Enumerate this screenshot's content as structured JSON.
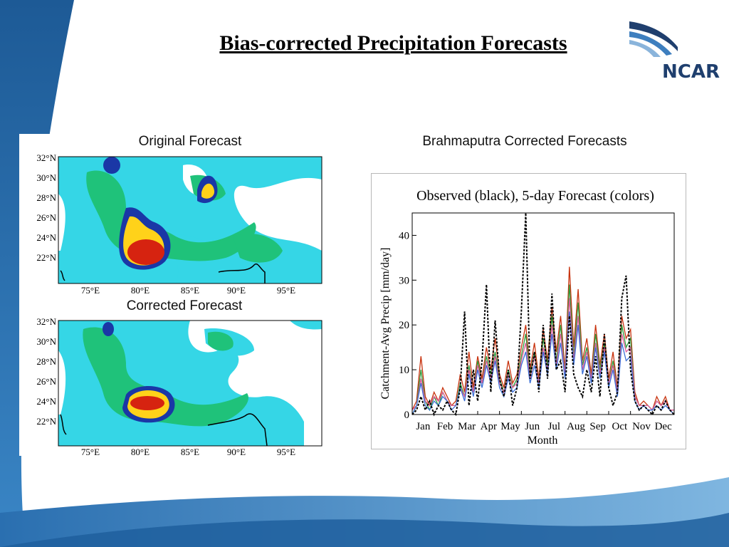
{
  "slide": {
    "title": "Bias-corrected Precipitation Forecasts",
    "logo_text": "NCAR",
    "colors": {
      "bg_dark": "#1d5a96",
      "bg_light": "#4c93cf",
      "logo": "#1f3f6e"
    }
  },
  "maps": {
    "original_label": "Original Forecast",
    "corrected_label": "Corrected Forecast",
    "lat_labels": [
      "32°N",
      "30°N",
      "28°N",
      "26°N",
      "24°N",
      "22°N"
    ],
    "lon_labels": [
      "75°E",
      "80°E",
      "85°E",
      "90°E",
      "95°E"
    ],
    "colors": {
      "low": "#35d6e6",
      "mid": "#1fc27a",
      "high": "#1a37a6",
      "peak": "#ffd21a",
      "max": "#d62310"
    }
  },
  "chart_data": {
    "type": "line",
    "caption": "Brahmaputra Corrected Forecasts",
    "title": "Observed (black), 5-day Forecast (colors)",
    "xlabel": "Month",
    "ylabel": "Catchment-Avg Precip [mm/day]",
    "ylim": [
      0,
      45
    ],
    "yticks": [
      0,
      10,
      20,
      30,
      40
    ],
    "categories": [
      "Jan",
      "Feb",
      "Mar",
      "Apr",
      "May",
      "Jun",
      "Jul",
      "Aug",
      "Sep",
      "Oct",
      "Nov",
      "Dec"
    ],
    "grid": false,
    "series": [
      {
        "name": "Observed",
        "color": "#000000",
        "x": [
          0,
          0.2,
          0.4,
          0.6,
          0.8,
          1.0,
          1.2,
          1.4,
          1.6,
          1.8,
          2.0,
          2.2,
          2.4,
          2.6,
          2.8,
          3.0,
          3.2,
          3.4,
          3.6,
          3.8,
          4.0,
          4.2,
          4.4,
          4.6,
          4.8,
          5.0,
          5.2,
          5.4,
          5.6,
          5.8,
          6.0,
          6.2,
          6.4,
          6.6,
          6.8,
          7.0,
          7.2,
          7.4,
          7.6,
          7.8,
          8.0,
          8.2,
          8.4,
          8.6,
          8.8,
          9.0,
          9.2,
          9.4,
          9.6,
          9.8,
          10.0,
          10.2,
          10.4,
          10.6,
          10.8,
          11.0,
          11.2,
          11.4,
          11.6,
          11.8,
          12.0
        ],
        "values": [
          0,
          1,
          4,
          1,
          3,
          0,
          2,
          1,
          3,
          1,
          0,
          6,
          23,
          2,
          10,
          3,
          12,
          29,
          5,
          21,
          8,
          4,
          10,
          2,
          6,
          23,
          46,
          8,
          14,
          5,
          20,
          8,
          27,
          10,
          12,
          5,
          22,
          9,
          6,
          4,
          10,
          5,
          13,
          4,
          18,
          6,
          2,
          5,
          26,
          31,
          10,
          3,
          1,
          2,
          1,
          0,
          2,
          1,
          3,
          1,
          0
        ]
      },
      {
        "name": "Forecast",
        "color": "#c8330f",
        "x": [
          0,
          0.2,
          0.4,
          0.6,
          0.8,
          1.0,
          1.2,
          1.4,
          1.6,
          1.8,
          2.0,
          2.2,
          2.4,
          2.6,
          2.8,
          3.0,
          3.2,
          3.4,
          3.6,
          3.8,
          4.0,
          4.2,
          4.4,
          4.6,
          4.8,
          5.0,
          5.2,
          5.4,
          5.6,
          5.8,
          6.0,
          6.2,
          6.4,
          6.6,
          6.8,
          7.0,
          7.2,
          7.4,
          7.6,
          7.8,
          8.0,
          8.2,
          8.4,
          8.6,
          8.8,
          9.0,
          9.2,
          9.4,
          9.6,
          9.8,
          10.0,
          10.2,
          10.4,
          10.6,
          10.8,
          11.0,
          11.2,
          11.4,
          11.6,
          11.8,
          12.0
        ],
        "values": [
          1,
          3,
          13,
          4,
          2,
          5,
          3,
          6,
          4,
          2,
          3,
          9,
          5,
          14,
          6,
          13,
          8,
          15,
          10,
          17,
          9,
          6,
          12,
          7,
          9,
          15,
          20,
          10,
          16,
          8,
          19,
          12,
          24,
          14,
          22,
          10,
          33,
          15,
          28,
          12,
          17,
          9,
          20,
          11,
          18,
          8,
          14,
          6,
          22,
          17,
          19,
          5,
          2,
          3,
          2,
          1,
          4,
          2,
          4,
          1,
          1
        ]
      },
      {
        "name": "Forecast",
        "color": "#2e9c3a",
        "x": [
          0,
          0.2,
          0.4,
          0.6,
          0.8,
          1.0,
          1.2,
          1.4,
          1.6,
          1.8,
          2.0,
          2.2,
          2.4,
          2.6,
          2.8,
          3.0,
          3.2,
          3.4,
          3.6,
          3.8,
          4.0,
          4.2,
          4.4,
          4.6,
          4.8,
          5.0,
          5.2,
          5.4,
          5.6,
          5.8,
          6.0,
          6.2,
          6.4,
          6.6,
          6.8,
          7.0,
          7.2,
          7.4,
          7.6,
          7.8,
          8.0,
          8.2,
          8.4,
          8.6,
          8.8,
          9.0,
          9.2,
          9.4,
          9.6,
          9.8,
          10.0,
          10.2,
          10.4,
          10.6,
          10.8,
          11.0,
          11.2,
          11.4,
          11.6,
          11.8,
          12.0
        ],
        "values": [
          0,
          2,
          10,
          3,
          1,
          4,
          2,
          5,
          3,
          2,
          2,
          7,
          4,
          11,
          5,
          12,
          7,
          13,
          9,
          14,
          8,
          5,
          10,
          6,
          8,
          13,
          18,
          9,
          14,
          7,
          17,
          11,
          22,
          12,
          20,
          9,
          29,
          13,
          25,
          11,
          15,
          8,
          18,
          10,
          16,
          7,
          12,
          5,
          20,
          15,
          17,
          4,
          2,
          2,
          2,
          1,
          3,
          2,
          3,
          1,
          1
        ]
      },
      {
        "name": "Forecast",
        "color": "#e05a9a",
        "x": [
          0,
          0.2,
          0.4,
          0.6,
          0.8,
          1.0,
          1.2,
          1.4,
          1.6,
          1.8,
          2.0,
          2.2,
          2.4,
          2.6,
          2.8,
          3.0,
          3.2,
          3.4,
          3.6,
          3.8,
          4.0,
          4.2,
          4.4,
          4.6,
          4.8,
          5.0,
          5.2,
          5.4,
          5.6,
          5.8,
          6.0,
          6.2,
          6.4,
          6.6,
          6.8,
          7.0,
          7.2,
          7.4,
          7.6,
          7.8,
          8.0,
          8.2,
          8.4,
          8.6,
          8.8,
          9.0,
          9.2,
          9.4,
          9.6,
          9.8,
          10.0,
          10.2,
          10.4,
          10.6,
          10.8,
          11.0,
          11.2,
          11.4,
          11.6,
          11.8,
          12.0
        ],
        "values": [
          1,
          2,
          8,
          3,
          2,
          4,
          3,
          5,
          3,
          2,
          2,
          6,
          4,
          10,
          5,
          11,
          7,
          12,
          8,
          13,
          7,
          5,
          9,
          6,
          7,
          12,
          16,
          8,
          13,
          7,
          15,
          10,
          20,
          11,
          18,
          9,
          26,
          12,
          22,
          10,
          14,
          8,
          16,
          9,
          15,
          7,
          11,
          5,
          18,
          14,
          15,
          4,
          2,
          2,
          2,
          1,
          3,
          2,
          3,
          1,
          1
        ]
      },
      {
        "name": "Forecast",
        "color": "#3a6fd6",
        "x": [
          0,
          0.2,
          0.4,
          0.6,
          0.8,
          1.0,
          1.2,
          1.4,
          1.6,
          1.8,
          2.0,
          2.2,
          2.4,
          2.6,
          2.8,
          3.0,
          3.2,
          3.4,
          3.6,
          3.8,
          4.0,
          4.2,
          4.4,
          4.6,
          4.8,
          5.0,
          5.2,
          5.4,
          5.6,
          5.8,
          6.0,
          6.2,
          6.4,
          6.6,
          6.8,
          7.0,
          7.2,
          7.4,
          7.6,
          7.8,
          8.0,
          8.2,
          8.4,
          8.6,
          8.8,
          9.0,
          9.2,
          9.4,
          9.6,
          9.8,
          10.0,
          10.2,
          10.4,
          10.6,
          10.8,
          11.0,
          11.2,
          11.4,
          11.6,
          11.8,
          12.0
        ],
        "values": [
          0,
          2,
          7,
          2,
          1,
          3,
          2,
          4,
          3,
          1,
          2,
          6,
          3,
          9,
          4,
          10,
          6,
          11,
          7,
          12,
          6,
          4,
          8,
          5,
          6,
          11,
          14,
          7,
          11,
          6,
          14,
          9,
          18,
          10,
          16,
          8,
          23,
          11,
          20,
          9,
          13,
          7,
          15,
          8,
          14,
          6,
          10,
          4,
          16,
          12,
          13,
          3,
          1,
          2,
          1,
          1,
          2,
          1,
          2,
          1,
          0
        ]
      }
    ]
  }
}
